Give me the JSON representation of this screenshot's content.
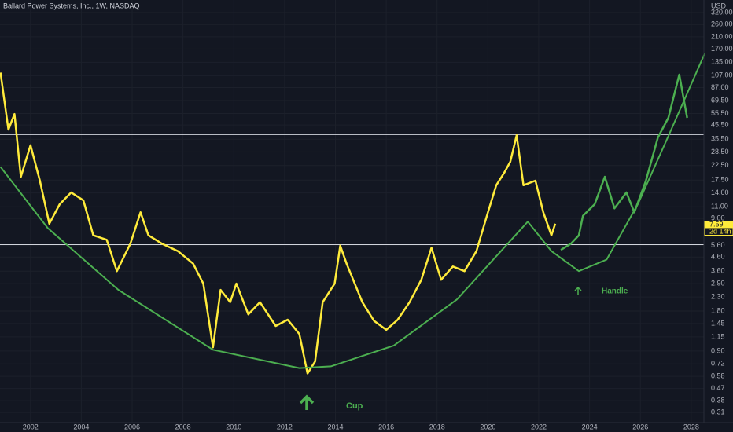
{
  "chart_data": {
    "type": "line",
    "title": "Ballard Power Systems, Inc., 1W, NASDAQ",
    "currency": "USD",
    "log_scale": true,
    "grid": true,
    "xlim": [
      2000.8,
      2028.5
    ],
    "xticks": [
      2002,
      2004,
      2006,
      2008,
      2010,
      2012,
      2014,
      2016,
      2018,
      2020,
      2022,
      2024,
      2026,
      2028
    ],
    "ylim": [
      0.26,
      398
    ],
    "yticks": [
      {
        "value": 320,
        "label": "320.00"
      },
      {
        "value": 260,
        "label": "260.00"
      },
      {
        "value": 210,
        "label": "210.00"
      },
      {
        "value": 170,
        "label": "170.00"
      },
      {
        "value": 135,
        "label": "135.00"
      },
      {
        "value": 107,
        "label": "107.00"
      },
      {
        "value": 87,
        "label": "87.00"
      },
      {
        "value": 69.5,
        "label": "69.50"
      },
      {
        "value": 55.5,
        "label": "55.50"
      },
      {
        "value": 45.5,
        "label": "45.50"
      },
      {
        "value": 35.5,
        "label": "35.50"
      },
      {
        "value": 28.5,
        "label": "28.50"
      },
      {
        "value": 22.5,
        "label": "22.50"
      },
      {
        "value": 17.5,
        "label": "17.50"
      },
      {
        "value": 14,
        "label": "14.00"
      },
      {
        "value": 11,
        "label": "11.00"
      },
      {
        "value": 9,
        "label": "9.00"
      },
      {
        "value": 5.6,
        "label": "5.60"
      },
      {
        "value": 4.6,
        "label": "4.60"
      },
      {
        "value": 3.6,
        "label": "3.60"
      },
      {
        "value": 2.9,
        "label": "2.90"
      },
      {
        "value": 2.3,
        "label": "2.30"
      },
      {
        "value": 1.8,
        "label": "1.80"
      },
      {
        "value": 1.45,
        "label": "1.45"
      },
      {
        "value": 1.15,
        "label": "1.15"
      },
      {
        "value": 0.9,
        "label": "0.90"
      },
      {
        "value": 0.72,
        "label": "0.72"
      },
      {
        "value": 0.58,
        "label": "0.58"
      },
      {
        "value": 0.47,
        "label": "0.47"
      },
      {
        "value": 0.38,
        "label": "0.38"
      },
      {
        "value": 0.31,
        "label": "0.31"
      }
    ],
    "series": [
      {
        "color": "#ffeb3b",
        "x": [
          2000.82,
          2001.13,
          2001.37,
          2001.62,
          2002,
          2002.37,
          2002.74,
          2003.15,
          2003.6,
          2004.08,
          2004.47,
          2005,
          2005.4,
          2005.93,
          2006.33,
          2006.64,
          2007.17,
          2007.8,
          2008.4,
          2008.8,
          2009.18,
          2009.48,
          2009.86,
          2010.1,
          2010.57,
          2011.03,
          2011.65,
          2012.12,
          2012.58,
          2012.9,
          2013.2,
          2013.5,
          2013.97,
          2014.19,
          2014.44,
          2015.06,
          2015.52,
          2016,
          2016.45,
          2016.92,
          2017.38,
          2017.78,
          2018.16,
          2018.62,
          2019.08,
          2019.55,
          2020,
          2020.33,
          2020.64,
          2020.88,
          2021.13,
          2021.4,
          2021.87,
          2022.18,
          2022.5,
          2022.65
        ],
        "values": [
          113,
          42,
          55,
          18.5,
          32,
          17.3,
          8.2,
          11.5,
          14.1,
          12.3,
          6.7,
          6.2,
          3.6,
          5.8,
          10,
          6.7,
          5.8,
          5.1,
          4.1,
          2.9,
          0.96,
          2.6,
          2.1,
          2.9,
          1.7,
          2.1,
          1.39,
          1.55,
          1.21,
          0.61,
          0.75,
          2.1,
          2.9,
          5.6,
          4.1,
          2.1,
          1.52,
          1.3,
          1.55,
          2.1,
          3.1,
          5.4,
          3.1,
          3.9,
          3.6,
          5.1,
          10,
          16,
          19.8,
          24,
          38,
          16,
          17.3,
          10,
          6.7,
          8.2
        ]
      },
      {
        "color": "#4caf50",
        "x": [
          2022.87,
          2023.27,
          2023.58,
          2023.74,
          2024.2,
          2024.6,
          2024.98,
          2025.45,
          2025.76,
          2026.22,
          2026.69,
          2027.1,
          2027.53,
          2027.84
        ],
        "values": [
          5.2,
          5.8,
          6.7,
          9.4,
          11.5,
          18.5,
          10.7,
          14.1,
          10,
          17.3,
          36.6,
          51.5,
          109,
          51.5
        ]
      },
      {
        "color": "#4caf50",
        "x": [
          2000.82,
          2002.68,
          2005.46,
          2009.18,
          2012.58,
          2013.82,
          2016.3,
          2018.78,
          2021.57,
          2022.5,
          2023.58,
          2024.67,
          2025.9,
          2027.14,
          2028.53
        ],
        "values": [
          22,
          7.6,
          2.6,
          0.92,
          0.67,
          0.69,
          0.99,
          2.2,
          8.5,
          5.1,
          3.6,
          4.4,
          11.5,
          39,
          157
        ]
      }
    ],
    "hlines": [
      38.5,
      5.7
    ],
    "last_price": {
      "value": 7.59,
      "label": "7.59",
      "countdown": "2d 14h"
    },
    "annotations": [
      "Cup",
      "Handle"
    ]
  }
}
